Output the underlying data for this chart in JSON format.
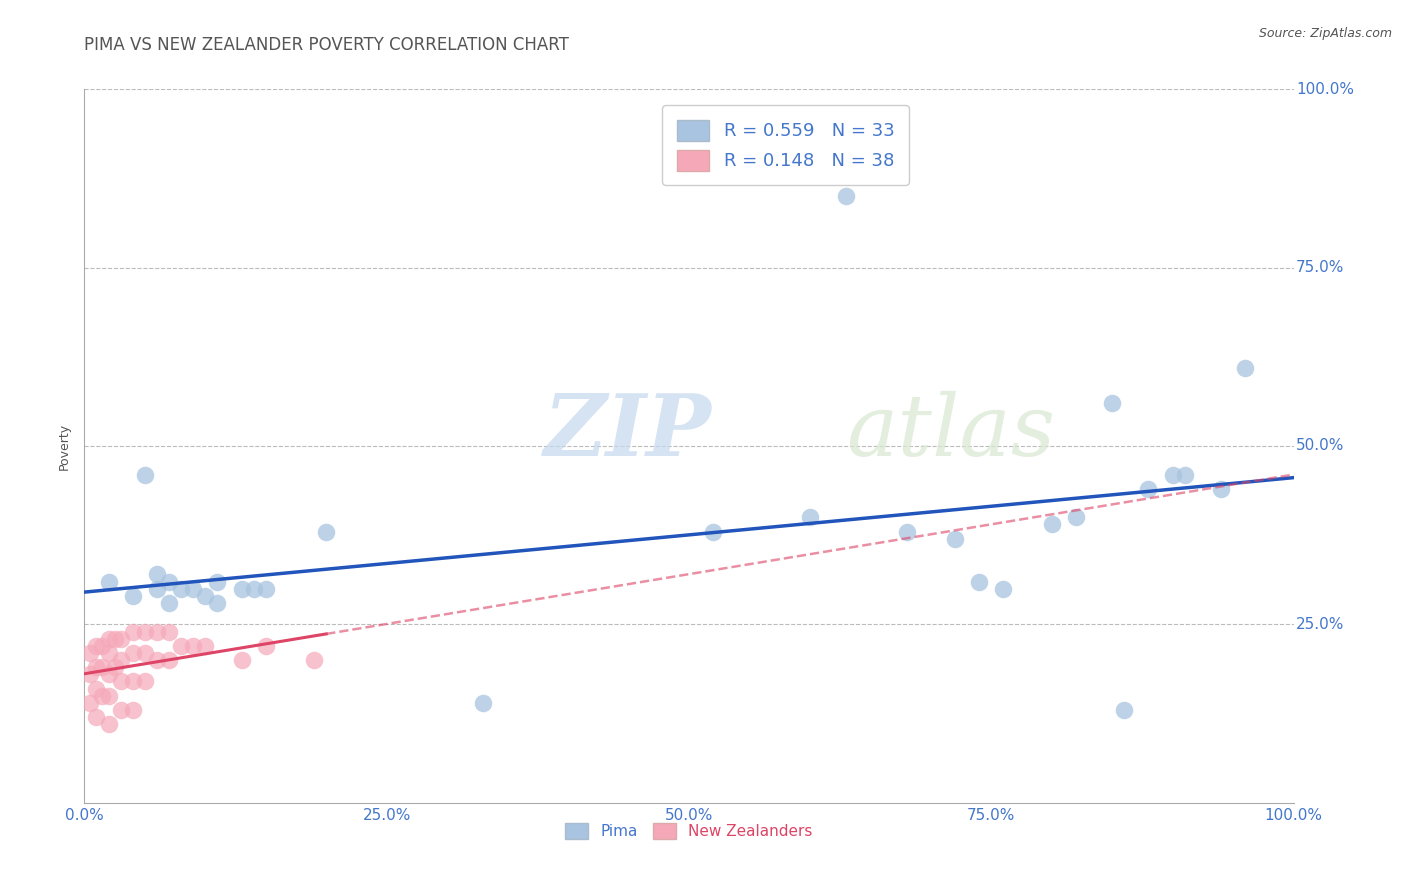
{
  "title": "PIMA VS NEW ZEALANDER POVERTY CORRELATION CHART",
  "source_text": "Source: ZipAtlas.com",
  "ylabel": "Poverty",
  "xlim": [
    0,
    1
  ],
  "ylim": [
    0,
    1
  ],
  "xticks": [
    0.0,
    0.25,
    0.5,
    0.75,
    1.0
  ],
  "yticks": [
    0.0,
    0.25,
    0.5,
    0.75,
    1.0
  ],
  "xtick_labels": [
    "0.0%",
    "25.0%",
    "50.0%",
    "75.0%",
    "100.0%"
  ],
  "ytick_labels": [
    "",
    "25.0%",
    "50.0%",
    "75.0%",
    "100.0%"
  ],
  "watermark_zip": "ZIP",
  "watermark_atlas": "atlas",
  "pima_color": "#A8C4E0",
  "nz_color": "#F5A8B8",
  "pima_R": 0.559,
  "pima_N": 33,
  "nz_R": 0.148,
  "nz_N": 38,
  "background_color": "#FFFFFF",
  "grid_color": "#BBBBBB",
  "title_color": "#555555",
  "tick_color": "#4477CC",
  "pima_x": [
    0.02,
    0.04,
    0.05,
    0.06,
    0.06,
    0.07,
    0.07,
    0.08,
    0.09,
    0.1,
    0.11,
    0.11,
    0.13,
    0.14,
    0.15,
    0.2,
    0.33,
    0.52,
    0.6,
    0.63,
    0.68,
    0.72,
    0.74,
    0.76,
    0.8,
    0.82,
    0.85,
    0.86,
    0.88,
    0.9,
    0.91,
    0.94,
    0.96
  ],
  "pima_y": [
    0.31,
    0.29,
    0.46,
    0.32,
    0.3,
    0.31,
    0.28,
    0.3,
    0.3,
    0.29,
    0.31,
    0.28,
    0.3,
    0.3,
    0.3,
    0.38,
    0.14,
    0.38,
    0.4,
    0.85,
    0.38,
    0.37,
    0.31,
    0.3,
    0.39,
    0.4,
    0.56,
    0.13,
    0.44,
    0.46,
    0.46,
    0.44,
    0.61
  ],
  "nz_x": [
    0.005,
    0.005,
    0.005,
    0.01,
    0.01,
    0.01,
    0.01,
    0.015,
    0.015,
    0.015,
    0.02,
    0.02,
    0.02,
    0.02,
    0.02,
    0.025,
    0.025,
    0.03,
    0.03,
    0.03,
    0.03,
    0.04,
    0.04,
    0.04,
    0.04,
    0.05,
    0.05,
    0.05,
    0.06,
    0.06,
    0.07,
    0.07,
    0.08,
    0.09,
    0.1,
    0.13,
    0.15,
    0.19
  ],
  "nz_y": [
    0.21,
    0.18,
    0.14,
    0.22,
    0.19,
    0.16,
    0.12,
    0.22,
    0.19,
    0.15,
    0.23,
    0.21,
    0.18,
    0.15,
    0.11,
    0.23,
    0.19,
    0.23,
    0.2,
    0.17,
    0.13,
    0.24,
    0.21,
    0.17,
    0.13,
    0.24,
    0.21,
    0.17,
    0.24,
    0.2,
    0.24,
    0.2,
    0.22,
    0.22,
    0.22,
    0.2,
    0.22,
    0.2
  ],
  "pima_line_color": "#2255BB",
  "nz_line_color": "#DD4466",
  "title_fontsize": 12,
  "axis_label_fontsize": 9,
  "tick_fontsize": 11,
  "legend_fontsize": 13,
  "watermark_zip_fontsize": 62,
  "watermark_atlas_fontsize": 62
}
